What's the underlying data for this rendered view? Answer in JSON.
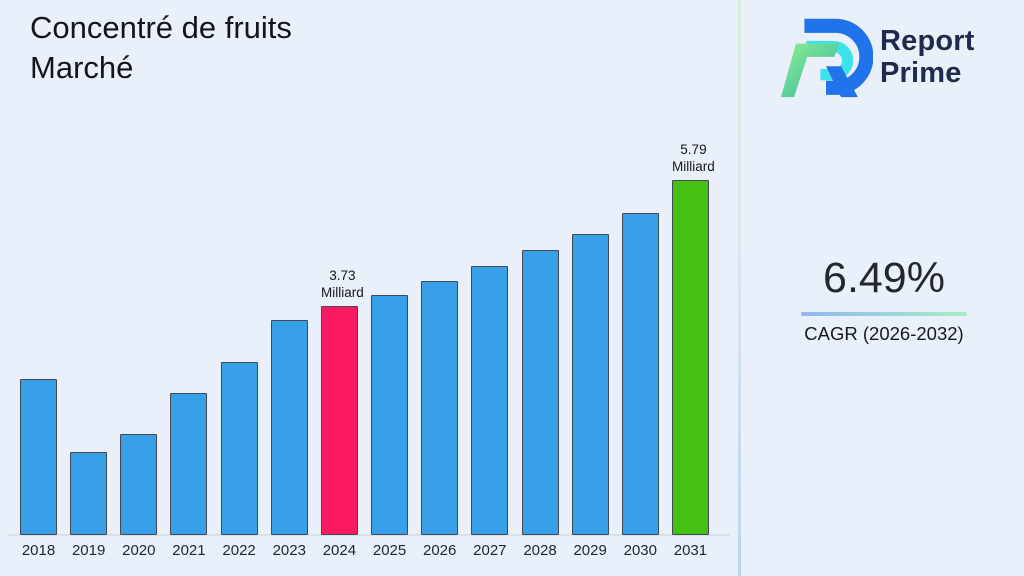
{
  "header": {
    "title": "Concentré de fruits\nMarché"
  },
  "logo": {
    "line1": "Report",
    "line2": "Prime",
    "text_color": "#1F2A4D",
    "mark_colors": {
      "blue": "#2173EA",
      "cyan": "#3DE2EA",
      "green_light": "#8FEF8D",
      "green_teal": "#2EB4A8"
    }
  },
  "cagr": {
    "value": "6.49%",
    "label": "CAGR (2026-2032)",
    "underline_colors": [
      "#92B6F1",
      "#A9EDC3"
    ]
  },
  "chart_data": {
    "type": "bar",
    "title": "Concentré de fruits Marché",
    "unit": "Milliard",
    "categories": [
      "2018",
      "2019",
      "2020",
      "2021",
      "2022",
      "2023",
      "2024",
      "2025",
      "2026",
      "2027",
      "2028",
      "2029",
      "2030",
      "2031"
    ],
    "values": [
      2.55,
      1.35,
      1.65,
      2.32,
      2.82,
      3.5,
      3.73,
      3.92,
      4.15,
      4.38,
      4.65,
      4.91,
      5.25,
      5.79
    ],
    "ylim": [
      0,
      5.79
    ],
    "grid": false,
    "legend": false,
    "colors": {
      "default": "#37A0E9",
      "2024": "#FA1A62",
      "2031": "#45C113"
    },
    "annotations": [
      {
        "category": "2024",
        "line1": "3.73",
        "line2": "Milliard"
      },
      {
        "category": "2031",
        "line1": "5.79",
        "line2": "Milliard"
      }
    ]
  }
}
